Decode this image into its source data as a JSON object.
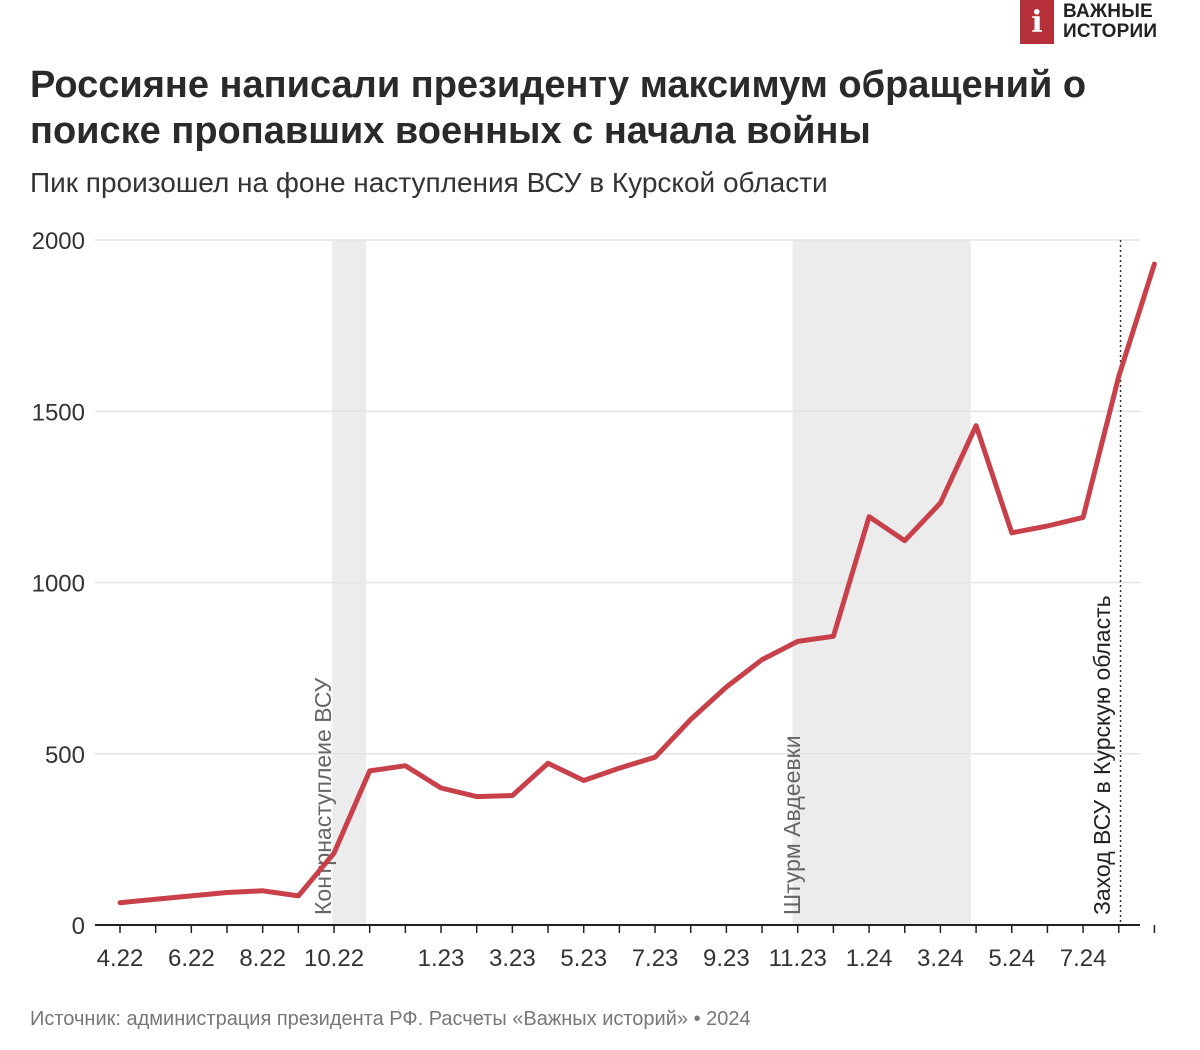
{
  "brand": {
    "mark": "i",
    "line1": "ВАЖНЫЕ",
    "line2": "ИСТОРИИ",
    "color": "#b6303a"
  },
  "header": {
    "title": "Россияне написали президенту максимум обращений о поиске пропавших военных с начала войны",
    "subtitle": "Пик произошел на фоне наступления ВСУ в Курской области"
  },
  "source": "Источник: администрация президента РФ. Расчеты «Важных историй» • 2024",
  "chart_data": {
    "type": "line",
    "x_ticks": [
      "4.22",
      "6.22",
      "8.22",
      "10.22",
      "1.23",
      "3.23",
      "5.23",
      "7.23",
      "9.23",
      "11.23",
      "1.24",
      "3.24",
      "5.24",
      "7.24"
    ],
    "x_tick_index": [
      0,
      2,
      4,
      6,
      9,
      11,
      13,
      15,
      17,
      19,
      21,
      23,
      25,
      27
    ],
    "ylim": [
      0,
      2000
    ],
    "yticks": [
      0,
      500,
      1000,
      1500,
      2000
    ],
    "grid": true,
    "series": [
      {
        "color": "#c8414a",
        "values": [
          65,
          75,
          85,
          95,
          100,
          85,
          210,
          450,
          465,
          400,
          375,
          378,
          472,
          422,
          458,
          490,
          600,
          695,
          775,
          828,
          843,
          1192,
          1122,
          1232,
          1458,
          1145,
          1165,
          1190,
          1602,
          1930
        ]
      }
    ],
    "highlights": [
      {
        "label": "Контрнаступлеие ВСУ",
        "start": 5.95,
        "end": 6.9
      },
      {
        "label": "Штурм Авдеевки",
        "start": 18.85,
        "end": 23.85
      }
    ],
    "event_line": {
      "label": "Заход ВСУ в Курскую область",
      "x": 28.05
    }
  }
}
